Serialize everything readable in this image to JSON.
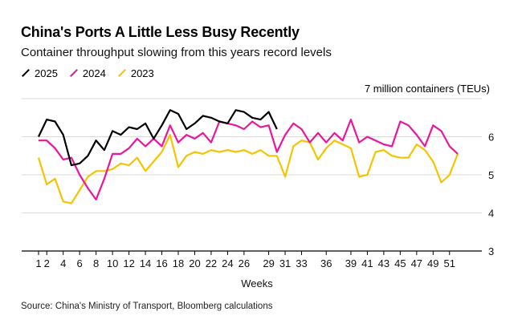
{
  "title": "China's Ports A Little Less Busy Recently",
  "subtitle": "Container throughput slowing from this years record levels",
  "source": "Source: China's Ministry of Transport, Bloomberg calculations",
  "chart_data": {
    "type": "line",
    "title": "China's Ports A Little Less Busy Recently",
    "xlabel": "Weeks",
    "ylabel": "7 million containers (TEUs)",
    "ylim": [
      3,
      7
    ],
    "y_ticks": [
      3,
      4,
      5,
      6
    ],
    "xlim": [
      1,
      52
    ],
    "x_tick_labels": [
      "1",
      "2",
      "4",
      "6",
      "8",
      "10",
      "12",
      "14",
      "16",
      "18",
      "20",
      "22",
      "24",
      "26",
      "29",
      "31",
      "33",
      "36",
      "39",
      "41",
      "43",
      "45",
      "47",
      "49",
      "51"
    ],
    "grid": true,
    "legend_position": "top-left",
    "series": [
      {
        "name": "2025",
        "color": "#000000",
        "x": [
          1,
          2,
          3,
          4,
          5,
          6,
          7,
          8,
          9,
          10,
          11,
          12,
          13,
          14,
          15,
          16,
          17,
          18,
          19,
          20,
          21,
          22,
          23,
          24,
          25,
          26,
          27,
          28,
          29,
          30
        ],
        "values": [
          6.0,
          6.45,
          6.4,
          6.05,
          5.25,
          5.3,
          5.5,
          5.9,
          5.65,
          6.15,
          6.05,
          6.25,
          6.2,
          6.35,
          5.95,
          6.3,
          6.7,
          6.6,
          6.2,
          6.35,
          6.55,
          6.5,
          6.4,
          6.35,
          6.7,
          6.65,
          6.5,
          6.45,
          6.65,
          6.2
        ]
      },
      {
        "name": "2024",
        "color": "#e8179b",
        "x": [
          1,
          2,
          3,
          4,
          5,
          6,
          7,
          8,
          9,
          10,
          11,
          12,
          13,
          14,
          15,
          16,
          17,
          18,
          19,
          20,
          21,
          22,
          23,
          24,
          25,
          26,
          27,
          28,
          29,
          30,
          31,
          32,
          33,
          34,
          35,
          36,
          37,
          38,
          39,
          40,
          41,
          42,
          43,
          44,
          45,
          46,
          47,
          48,
          49,
          50,
          51,
          52
        ],
        "values": [
          5.9,
          5.9,
          5.7,
          5.4,
          5.45,
          5.0,
          4.65,
          4.35,
          4.9,
          5.55,
          5.55,
          5.7,
          5.95,
          5.75,
          5.95,
          5.75,
          6.3,
          5.85,
          6.05,
          5.95,
          6.1,
          5.85,
          6.4,
          6.35,
          6.3,
          6.2,
          6.4,
          6.25,
          6.3,
          5.6,
          6.05,
          6.35,
          6.2,
          5.85,
          6.1,
          5.85,
          6.1,
          5.9,
          6.45,
          5.85,
          6.0,
          5.9,
          5.8,
          5.75,
          6.4,
          6.3,
          6.05,
          5.75,
          6.3,
          6.15,
          5.75,
          5.55
        ]
      },
      {
        "name": "2023",
        "color": "#f5c400",
        "x": [
          1,
          2,
          3,
          4,
          5,
          6,
          7,
          8,
          9,
          10,
          11,
          12,
          13,
          14,
          15,
          16,
          17,
          18,
          19,
          20,
          21,
          22,
          23,
          24,
          25,
          26,
          27,
          28,
          29,
          30,
          31,
          32,
          33,
          34,
          35,
          36,
          37,
          38,
          39,
          40,
          41,
          42,
          43,
          44,
          45,
          46,
          47,
          48,
          49,
          50,
          51,
          52
        ],
        "values": [
          5.45,
          4.75,
          4.9,
          4.3,
          4.25,
          4.6,
          4.95,
          5.1,
          5.1,
          5.15,
          5.3,
          5.25,
          5.45,
          5.1,
          5.35,
          5.6,
          6.05,
          5.2,
          5.5,
          5.6,
          5.55,
          5.65,
          5.6,
          5.65,
          5.6,
          5.65,
          5.55,
          5.65,
          5.5,
          5.5,
          4.95,
          5.75,
          5.9,
          5.85,
          5.4,
          5.7,
          5.9,
          5.8,
          5.7,
          4.95,
          5.0,
          5.6,
          5.65,
          5.5,
          5.45,
          5.45,
          5.8,
          5.65,
          5.35,
          4.8,
          5.0,
          5.55
        ]
      }
    ]
  }
}
